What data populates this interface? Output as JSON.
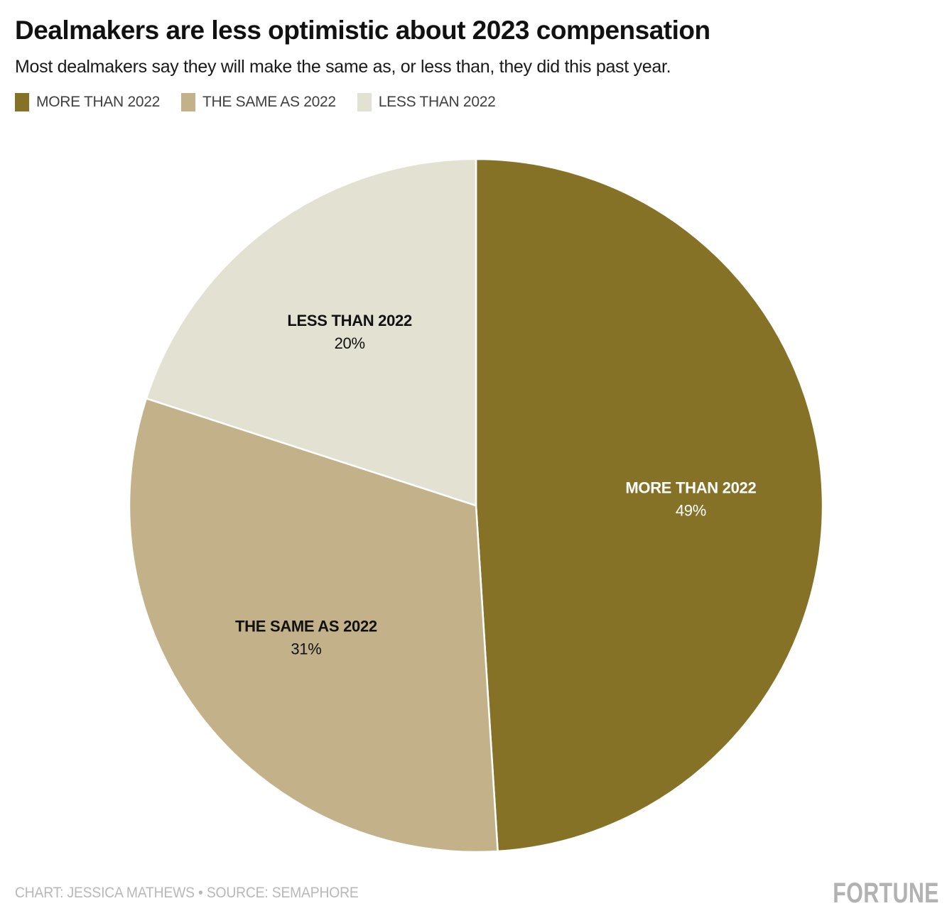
{
  "header": {
    "title": "Dealmakers are less optimistic about 2023 compensation",
    "subtitle": "Most dealmakers say they will make the same as, or less than, they did this past year."
  },
  "legend": {
    "position": "top-left",
    "items": [
      {
        "label": "MORE THAN 2022"
      },
      {
        "label": "THE SAME AS 2022"
      },
      {
        "label": "LESS THAN 2022"
      }
    ]
  },
  "chart_data": {
    "type": "pie",
    "title": "Dealmakers are less optimistic about 2023 compensation",
    "unit": "percent",
    "slices": [
      {
        "label": "MORE THAN 2022",
        "value": 49,
        "display_value": "49%",
        "color": "#867227",
        "label_color": "#ffffff"
      },
      {
        "label": "THE SAME AS 2022",
        "value": 31,
        "display_value": "31%",
        "color": "#C3B289",
        "label_color": "#111111"
      },
      {
        "label": "LESS THAN 2022",
        "value": 20,
        "display_value": "20%",
        "color": "#E2E1D2",
        "label_color": "#111111"
      }
    ],
    "start_angle_deg": 0,
    "clockwise": true,
    "slice_separator_color": "#ffffff",
    "label_radius_fraction": 0.62,
    "legend_position": "top-left"
  },
  "footer": {
    "credit": "CHART: JESSICA MATHEWS • SOURCE: SEMAPHORE",
    "brand": "FORTUNE"
  }
}
